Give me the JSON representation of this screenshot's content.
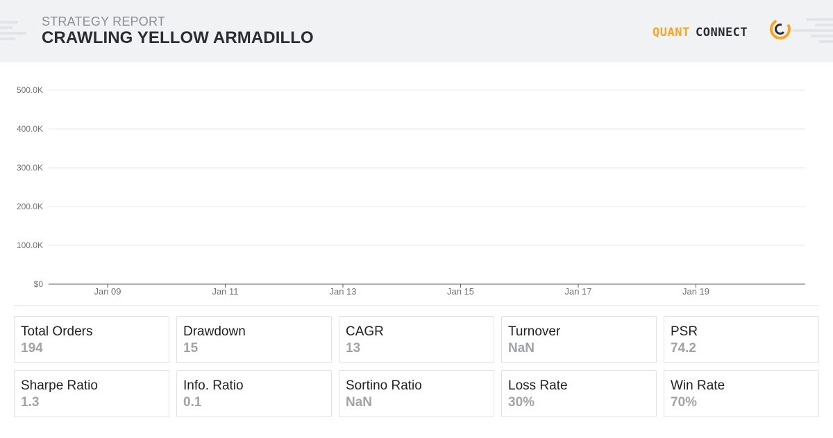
{
  "header": {
    "subtitle": "STRATEGY REPORT",
    "title": "CRAWLING YELLOW ARMADILLO",
    "logo_part1": "QUANT",
    "logo_part2": "CONNECT",
    "colors": {
      "accent": "#f5a623",
      "dark": "#2b2d31",
      "bg": "#f1f2f4"
    }
  },
  "chart_data": {
    "type": "line",
    "title": "",
    "xlabel": "",
    "ylabel": "",
    "y_ticks": [
      "$0",
      "100.0K",
      "200.0K",
      "300.0K",
      "400.0K",
      "500.0K"
    ],
    "ylim": [
      0,
      500000
    ],
    "x_ticks": [
      "Jan 09",
      "Jan 11",
      "Jan 13",
      "Jan 15",
      "Jan 17",
      "Jan 19"
    ],
    "grid": true,
    "series": []
  },
  "stats": [
    {
      "label": "Total Orders",
      "value": "194"
    },
    {
      "label": "Drawdown",
      "value": "15"
    },
    {
      "label": "CAGR",
      "value": "13"
    },
    {
      "label": "Turnover",
      "value": "NaN"
    },
    {
      "label": "PSR",
      "value": "74.2"
    },
    {
      "label": "Sharpe Ratio",
      "value": "1.3"
    },
    {
      "label": "Info. Ratio",
      "value": "0.1"
    },
    {
      "label": "Sortino Ratio",
      "value": "NaN"
    },
    {
      "label": "Loss Rate",
      "value": "30%"
    },
    {
      "label": "Win Rate",
      "value": "70%"
    }
  ]
}
